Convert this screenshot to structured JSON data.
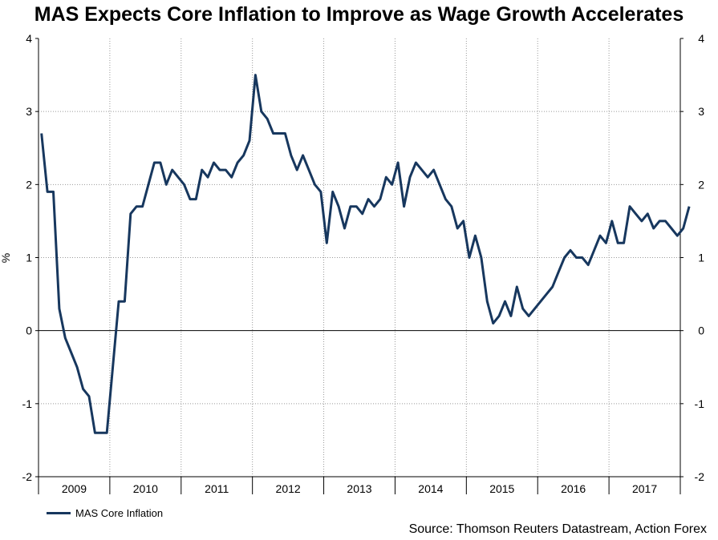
{
  "chart_data": {
    "type": "line",
    "title": "MAS Expects Core Inflation to Improve as Wage Growth Accelerates",
    "ylabel": "%",
    "xlabel": "",
    "ylim": [
      -2,
      4
    ],
    "yticks": [
      "-2",
      "-1",
      "0",
      "1",
      "2",
      "3",
      "4"
    ],
    "year_labels": [
      "2009",
      "2010",
      "2011",
      "2012",
      "2013",
      "2014",
      "2015",
      "2016",
      "2017"
    ],
    "grid": true,
    "legend_position": "bottom-left",
    "colors": {
      "line": "#17375e",
      "grid": "#999999",
      "axis": "#000000"
    },
    "series": [
      {
        "name": "MAS Core Inflation",
        "start": "2009-01",
        "values": [
          2.7,
          1.9,
          1.9,
          0.3,
          -0.1,
          -0.3,
          -0.5,
          -0.8,
          -0.9,
          -1.4,
          -1.4,
          -1.4,
          -0.5,
          0.4,
          0.4,
          1.6,
          1.7,
          1.7,
          2.0,
          2.3,
          2.3,
          2.0,
          2.2,
          2.1,
          2.0,
          1.8,
          1.8,
          2.2,
          2.1,
          2.3,
          2.2,
          2.2,
          2.1,
          2.3,
          2.4,
          2.6,
          3.5,
          3.0,
          2.9,
          2.7,
          2.7,
          2.7,
          2.4,
          2.2,
          2.4,
          2.2,
          2.0,
          1.9,
          1.2,
          1.9,
          1.7,
          1.4,
          1.7,
          1.7,
          1.6,
          1.8,
          1.7,
          1.8,
          2.1,
          2.0,
          2.3,
          1.7,
          2.1,
          2.3,
          2.2,
          2.1,
          2.2,
          2.0,
          1.8,
          1.7,
          1.4,
          1.5,
          1.0,
          1.3,
          1.0,
          0.4,
          0.1,
          0.2,
          0.4,
          0.2,
          0.6,
          0.3,
          0.2,
          0.3,
          0.4,
          0.5,
          0.6,
          0.8,
          1.0,
          1.1,
          1.0,
          1.0,
          0.9,
          1.1,
          1.3,
          1.2,
          1.5,
          1.2,
          1.2,
          1.7,
          1.6,
          1.5,
          1.6,
          1.4,
          1.5,
          1.5,
          1.4,
          1.3,
          1.4,
          1.7
        ]
      }
    ]
  },
  "source": "Source: Thomson Reuters Datastream, Action Forex"
}
